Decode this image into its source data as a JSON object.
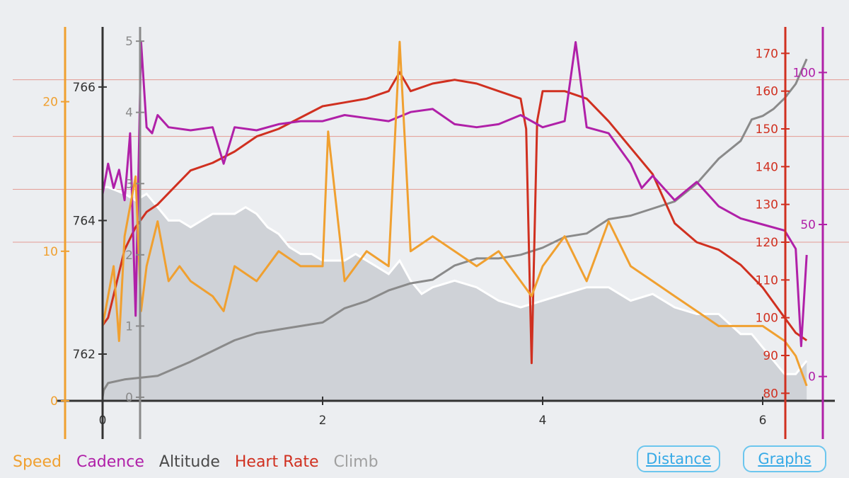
{
  "chart_data": {
    "type": "line",
    "x_axis": {
      "ticks": [
        0,
        2,
        4,
        6
      ],
      "range": [
        0,
        6.5
      ]
    },
    "axes": {
      "speed": {
        "color": "#f0a030",
        "range": [
          0,
          25
        ],
        "ticks": [
          0,
          10,
          20
        ]
      },
      "altitude": {
        "color": "#333333",
        "range": [
          761.3,
          766.9
        ],
        "ticks": [
          762,
          764,
          766
        ]
      },
      "climb": {
        "color": "#8a8a8a",
        "range": [
          -0.05,
          5.2
        ],
        "ticks": [
          0,
          1,
          2,
          3,
          4,
          5
        ]
      },
      "heart_rate": {
        "color": "#d03020",
        "range": [
          78,
          177
        ],
        "ticks": [
          80,
          90,
          100,
          110,
          120,
          130,
          140,
          150,
          160,
          170
        ]
      },
      "cadence": {
        "color": "#b020a8",
        "range": [
          -8,
          115
        ],
        "ticks": [
          0,
          50,
          100
        ]
      }
    },
    "colors": {
      "altitude_fill": "#cfd2d7",
      "altitude_line": "#ffffff",
      "grid": "#e49a92"
    },
    "grid_heart_rate": [
      120,
      134,
      148,
      163
    ],
    "series": [
      {
        "name": "Altitude",
        "axis": "altitude",
        "x": [
          0,
          0.05,
          0.2,
          0.3,
          0.4,
          0.5,
          0.6,
          0.7,
          0.8,
          0.9,
          1.0,
          1.1,
          1.2,
          1.3,
          1.4,
          1.5,
          1.6,
          1.7,
          1.8,
          1.9,
          2.0,
          2.1,
          2.2,
          2.3,
          2.4,
          2.5,
          2.6,
          2.7,
          2.8,
          2.9,
          3.0,
          3.2,
          3.4,
          3.6,
          3.8,
          4.0,
          4.2,
          4.4,
          4.6,
          4.8,
          5.0,
          5.2,
          5.4,
          5.6,
          5.8,
          5.9,
          6.0,
          6.1,
          6.2,
          6.3,
          6.4
        ],
        "values": [
          764.5,
          764.5,
          764.4,
          764.3,
          764.4,
          764.2,
          764.0,
          764.0,
          763.9,
          764.0,
          764.1,
          764.1,
          764.1,
          764.2,
          764.1,
          763.9,
          763.8,
          763.6,
          763.5,
          763.5,
          763.4,
          763.4,
          763.4,
          763.5,
          763.4,
          763.3,
          763.2,
          763.4,
          763.1,
          762.9,
          763.0,
          763.1,
          763.0,
          762.8,
          762.7,
          762.8,
          762.9,
          763.0,
          763.0,
          762.8,
          762.9,
          762.7,
          762.6,
          762.6,
          762.3,
          762.3,
          762.1,
          761.9,
          761.7,
          761.7,
          761.9
        ]
      },
      {
        "name": "Climb",
        "axis": "climb",
        "x": [
          0,
          0.01,
          0.05,
          0.2,
          0.5,
          0.8,
          1.0,
          1.2,
          1.4,
          1.6,
          1.8,
          2.0,
          2.2,
          2.4,
          2.6,
          2.8,
          3.0,
          3.2,
          3.4,
          3.6,
          3.8,
          4.0,
          4.2,
          4.4,
          4.6,
          4.8,
          5.0,
          5.2,
          5.4,
          5.6,
          5.8,
          5.9,
          6.0,
          6.1,
          6.2,
          6.3,
          6.4
        ],
        "values": [
          0,
          0.1,
          0.2,
          0.25,
          0.3,
          0.5,
          0.65,
          0.8,
          0.9,
          0.95,
          1.0,
          1.05,
          1.25,
          1.35,
          1.5,
          1.6,
          1.65,
          1.85,
          1.95,
          1.95,
          2.0,
          2.1,
          2.25,
          2.3,
          2.5,
          2.55,
          2.65,
          2.75,
          3.0,
          3.35,
          3.6,
          3.9,
          3.95,
          4.05,
          4.2,
          4.4,
          4.75
        ]
      },
      {
        "name": "Heart Rate",
        "axis": "heart_rate",
        "x": [
          0,
          0.05,
          0.1,
          0.15,
          0.2,
          0.3,
          0.4,
          0.5,
          0.6,
          0.7,
          0.8,
          1.0,
          1.2,
          1.4,
          1.6,
          1.8,
          2.0,
          2.2,
          2.4,
          2.6,
          2.7,
          2.8,
          3.0,
          3.2,
          3.4,
          3.6,
          3.8,
          3.85,
          3.9,
          3.95,
          4.0,
          4.2,
          4.4,
          4.6,
          4.8,
          5.0,
          5.2,
          5.4,
          5.6,
          5.8,
          6.0,
          6.2,
          6.3,
          6.4
        ],
        "values": [
          98,
          100,
          106,
          112,
          118,
          124,
          128,
          130,
          133,
          136,
          139,
          141,
          144,
          148,
          150,
          153,
          156,
          157,
          158,
          160,
          165,
          160,
          162,
          163,
          162,
          160,
          158,
          150,
          88,
          152,
          160,
          160,
          158,
          152,
          145,
          138,
          125,
          120,
          118,
          114,
          108,
          100,
          96,
          94
        ]
      },
      {
        "name": "Cadence",
        "axis": "cadence",
        "x": [
          0,
          0.05,
          0.1,
          0.15,
          0.2,
          0.25,
          0.3,
          0.35,
          0.4,
          0.45,
          0.5,
          0.6,
          0.8,
          1.0,
          1.1,
          1.2,
          1.4,
          1.6,
          1.8,
          2.0,
          2.2,
          2.4,
          2.6,
          2.8,
          3.0,
          3.2,
          3.4,
          3.6,
          3.8,
          4.0,
          4.2,
          4.3,
          4.4,
          4.6,
          4.8,
          4.9,
          5.0,
          5.2,
          5.4,
          5.6,
          5.8,
          6.0,
          6.2,
          6.3,
          6.35,
          6.4
        ],
        "values": [
          60,
          70,
          62,
          68,
          58,
          80,
          20,
          110,
          82,
          80,
          86,
          82,
          81,
          82,
          70,
          82,
          81,
          83,
          84,
          84,
          86,
          85,
          84,
          87,
          88,
          83,
          82,
          83,
          86,
          82,
          84,
          110,
          82,
          80,
          70,
          62,
          66,
          58,
          64,
          56,
          52,
          50,
          48,
          42,
          10,
          40
        ]
      },
      {
        "name": "Speed",
        "axis": "speed",
        "x": [
          0,
          0.05,
          0.1,
          0.15,
          0.2,
          0.3,
          0.35,
          0.4,
          0.5,
          0.6,
          0.7,
          0.8,
          1.0,
          1.1,
          1.2,
          1.4,
          1.6,
          1.8,
          2.0,
          2.05,
          2.2,
          2.4,
          2.6,
          2.7,
          2.8,
          3.0,
          3.2,
          3.4,
          3.6,
          3.8,
          3.9,
          4.0,
          4.2,
          4.4,
          4.6,
          4.8,
          5.0,
          5.2,
          5.4,
          5.6,
          5.8,
          6.0,
          6.2,
          6.3,
          6.35,
          6.4
        ],
        "values": [
          5,
          7,
          9,
          4,
          11,
          15,
          6,
          9,
          12,
          8,
          9,
          8,
          7,
          6,
          9,
          8,
          10,
          9,
          9,
          18,
          8,
          10,
          9,
          24,
          10,
          11,
          10,
          9,
          10,
          8,
          7,
          9,
          11,
          8,
          12,
          9,
          8,
          7,
          6,
          5,
          5,
          5,
          4,
          3,
          2,
          1
        ]
      }
    ]
  },
  "legend": {
    "speed": "Speed",
    "cadence": "Cadence",
    "altitude": "Altitude",
    "heart_rate": "Heart Rate",
    "climb": "Climb"
  },
  "buttons": {
    "distance": "Distance",
    "graphs": "Graphs"
  }
}
